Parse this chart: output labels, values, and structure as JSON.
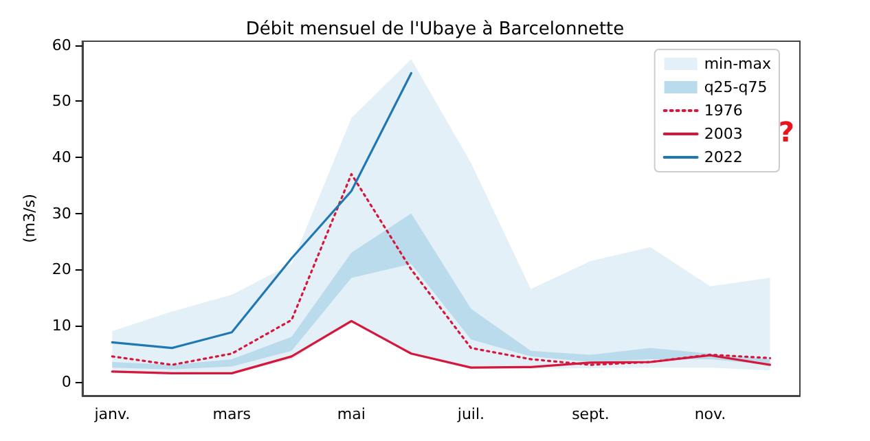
{
  "chart_data": {
    "type": "line",
    "title": "Débit mensuel de l'Ubaye à Barcelonnette",
    "ylabel": "(m3/s)",
    "categories": [
      "janv.",
      null,
      "mars",
      null,
      "mai",
      null,
      "juil.",
      null,
      "sept.",
      null,
      "nov.",
      null
    ],
    "series": [
      {
        "name": "min-max",
        "type": "area",
        "color": "#e4f0f7",
        "values": [
          null,
          null,
          null,
          null,
          null,
          null,
          null,
          null,
          null,
          null,
          null,
          null
        ],
        "lower": [
          1.5,
          1.3,
          1.3,
          4,
          10.5,
          4.8,
          2.3,
          2.3,
          2.4,
          2.5,
          2.5,
          2.0
        ],
        "upper": [
          9,
          12.5,
          15.5,
          21,
          47,
          57.5,
          39,
          16.5,
          21.5,
          24,
          17,
          18.5
        ]
      },
      {
        "name": "q25-q75",
        "type": "area",
        "color": "#b9dbeb",
        "values": [
          null,
          null,
          null,
          null,
          null,
          null,
          null,
          null,
          null,
          null,
          null,
          null
        ],
        "lower": [
          2.5,
          2.2,
          2.7,
          5.5,
          18.5,
          21,
          7.5,
          4.5,
          3.5,
          4,
          4,
          3
        ],
        "upper": [
          3.5,
          3,
          4,
          8,
          23,
          30,
          13,
          5.5,
          4.8,
          6,
          5,
          4
        ]
      },
      {
        "name": "1976",
        "color": "#d6173c",
        "line_style": "dotted",
        "values": [
          4.5,
          3,
          5,
          11,
          37,
          20,
          6,
          4,
          3,
          3.5,
          4.8,
          4.2
        ]
      },
      {
        "name": "2003",
        "color": "#d6173c",
        "line_style": "solid",
        "values": [
          1.8,
          1.5,
          1.5,
          4.5,
          10.8,
          5,
          2.5,
          2.6,
          3.4,
          3.5,
          4.7,
          3
        ]
      },
      {
        "name": "2022",
        "color": "#1f77b4",
        "line_style": "solid",
        "values": [
          7,
          6,
          8.8,
          22,
          34,
          55,
          null,
          null,
          null,
          null,
          null,
          null
        ]
      }
    ],
    "ylim": [
      -2.5,
      60.7
    ],
    "yticks": [
      0,
      10,
      20,
      30,
      40,
      50,
      60
    ],
    "grid": false,
    "legend": "top right",
    "marker": "none",
    "annotations": [
      "?"
    ]
  }
}
